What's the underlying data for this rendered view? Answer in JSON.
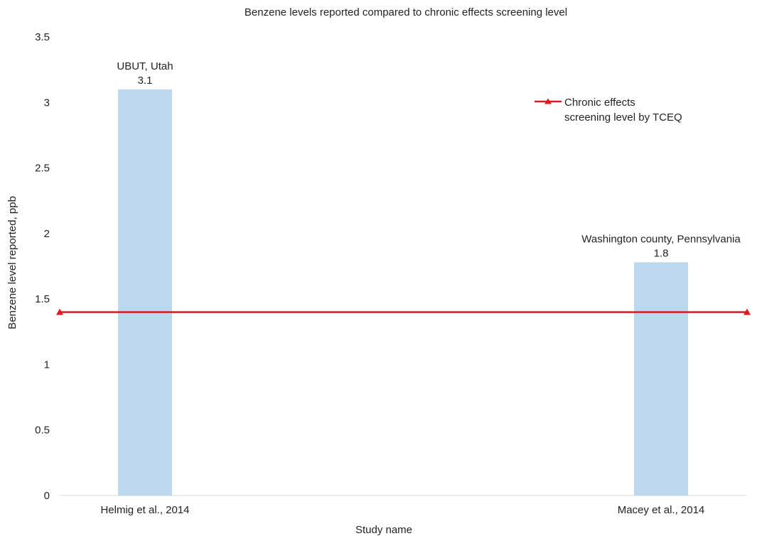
{
  "chart_data": {
    "type": "bar",
    "title": "Benzene levels reported compared to chronic effects screening level",
    "xlabel": "Study name",
    "ylabel": "Benzene level reported, ppb",
    "ylim": [
      0,
      3.5
    ],
    "yticks": [
      "0",
      "0.5",
      "1",
      "1.5",
      "2",
      "2.5",
      "3",
      "3.5"
    ],
    "categories": [
      "Helmig et al., 2014",
      "Macey et al., 2014"
    ],
    "series": [
      {
        "values": [
          3.1,
          1.78
        ],
        "data_labels": [
          "3.1",
          "1.8"
        ],
        "location_labels": [
          "UBUT, Utah",
          "Washington county, Pennsylvania"
        ],
        "color": "#bdd7ee"
      },
      {
        "name": "Chronic effects screening level by TCEQ",
        "legend_lines": [
          "Chronic effects",
          "screening level by TCEQ"
        ],
        "type": "line",
        "value": 1.4,
        "color": "#e0191f"
      }
    ],
    "grid": false,
    "legend_position": "top-right"
  }
}
